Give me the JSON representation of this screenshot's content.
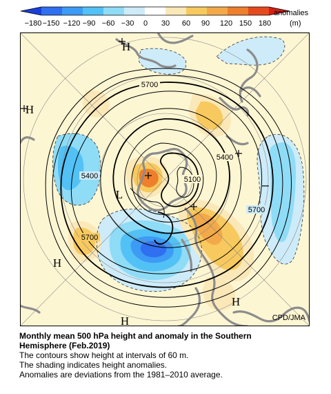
{
  "legend": {
    "ticks": [
      "−180",
      "−150",
      "−120",
      "−90",
      "−60",
      "−30",
      "0",
      "30",
      "60",
      "90",
      "120",
      "150",
      "180"
    ],
    "title_line1": "anomalies",
    "title_line2": "(m)",
    "colors": [
      "#1a3fd8",
      "#2f6ff0",
      "#3d9af5",
      "#52c1f5",
      "#8fdcf7",
      "#cdebf8",
      "#ffffff",
      "#fbe8b8",
      "#f7c95e",
      "#f3a94a",
      "#ee7f2c",
      "#e54a1e",
      "#d41f12"
    ]
  },
  "map": {
    "contour_labels": [
      "5700",
      "5400",
      "5100",
      "5400",
      "5700",
      "5700"
    ],
    "high_labels": [
      "H",
      "H",
      "H",
      "H",
      "H"
    ],
    "low_labels": [
      "L"
    ],
    "credit": "CPD/JMA",
    "colors": {
      "ocean": "#fdf6d3",
      "warm": "#f7c95e",
      "warm_strong": "#ee7f2c",
      "cold_light": "#8fdcf7",
      "cold": "#3d9af5",
      "cold_strong": "#2f6ff0",
      "land": "#8c8c8c"
    }
  },
  "caption": {
    "title_line1": "Monthly mean 500 hPa height and anomaly in the Southern",
    "title_line2": "Hemisphere (Feb.2019)",
    "line1": "The contours show height at intervals of 60 m.",
    "line2": "The shading indicates height anomalies.",
    "line3": "Anomalies are deviations from the 1981–2010 average."
  }
}
